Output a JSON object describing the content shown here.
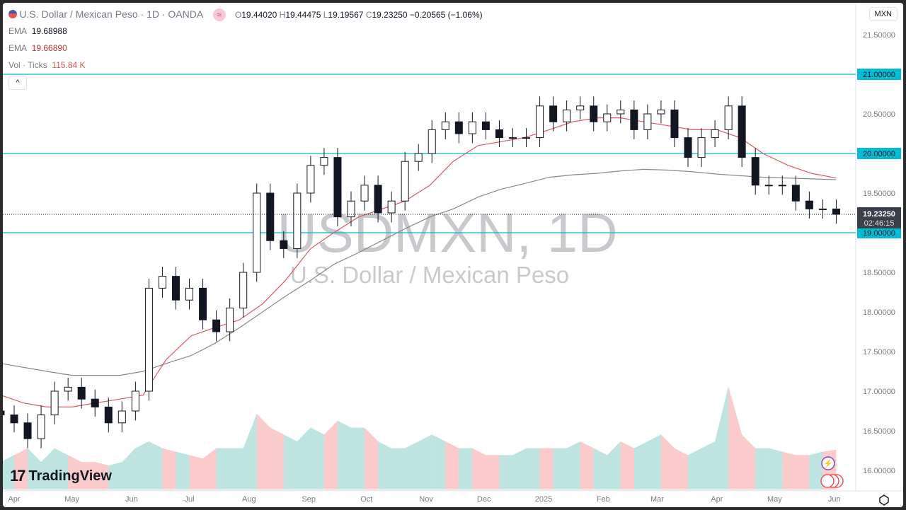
{
  "header": {
    "title": "U.S. Dollar / Mexican Peso · 1D · OANDA",
    "o_label": "O",
    "o": "19.44020",
    "h_label": "H",
    "h": "19.44475",
    "l_label": "L",
    "l": "19.19567",
    "c_label": "C",
    "c": "19.23250",
    "change": "−0.20565 (−1.06%)",
    "symbol_button": "MXN"
  },
  "indicators": [
    {
      "name": "EMA",
      "value": "19.68988",
      "color": "#131722"
    },
    {
      "name": "EMA",
      "value": "19.66890",
      "color": "#c0392b"
    },
    {
      "name": "Vol · Ticks",
      "value": "115.84 K",
      "color": "#e05555"
    }
  ],
  "watermark": {
    "line1": "USDMXN, 1D",
    "line2": "U.S. Dollar / Mexican Peso"
  },
  "logo": "TradingView",
  "price_badge": {
    "price": "19.23250",
    "countdown": "02:46:15"
  },
  "level_badges": [
    "21.00000",
    "20.00000",
    "19.00000"
  ],
  "colors": {
    "up": "#26a69a",
    "down": "#ef5350",
    "level": "#00bcd4",
    "ema_fast": "#e05560",
    "ema_slow": "#888888"
  },
  "chart_data": {
    "type": "candlestick",
    "interval": "weekly-sampled",
    "ylim": [
      15.8,
      21.6
    ],
    "y_ticks": [
      "21.50000",
      "21.00000",
      "20.50000",
      "20.00000",
      "19.50000",
      "19.00000",
      "18.50000",
      "18.00000",
      "17.50000",
      "17.00000",
      "16.50000",
      "16.00000"
    ],
    "y_tick_values": [
      21.5,
      21,
      20.5,
      20,
      19.5,
      19,
      18.5,
      18,
      17.5,
      17,
      16.5,
      16
    ],
    "x_ticks": [
      {
        "label": "Apr",
        "date": "2024-04-01"
      },
      {
        "label": "May",
        "date": "2024-05-01"
      },
      {
        "label": "Jun",
        "date": "2024-06-01"
      },
      {
        "label": "Jul",
        "date": "2024-07-01"
      },
      {
        "label": "Aug",
        "date": "2024-08-01"
      },
      {
        "label": "Sep",
        "date": "2024-09-01"
      },
      {
        "label": "Oct",
        "date": "2024-10-01"
      },
      {
        "label": "Nov",
        "date": "2024-11-01"
      },
      {
        "label": "Dec",
        "date": "2024-12-01"
      },
      {
        "label": "2025",
        "date": "2025-01-01"
      },
      {
        "label": "Feb",
        "date": "2025-02-01"
      },
      {
        "label": "Mar",
        "date": "2025-03-01"
      },
      {
        "label": "Apr",
        "date": "2025-04-01"
      },
      {
        "label": "May",
        "date": "2025-05-01"
      },
      {
        "label": "Jun",
        "date": "2025-06-01"
      }
    ],
    "horizontal_levels": [
      21.0,
      20.0,
      19.0
    ],
    "last_price": 19.2325,
    "dates": [
      "2024-03-25",
      "2024-04-01",
      "2024-04-08",
      "2024-04-15",
      "2024-04-22",
      "2024-04-29",
      "2024-05-06",
      "2024-05-13",
      "2024-05-20",
      "2024-05-27",
      "2024-06-03",
      "2024-06-10",
      "2024-06-17",
      "2024-06-24",
      "2024-07-01",
      "2024-07-08",
      "2024-07-15",
      "2024-07-22",
      "2024-07-29",
      "2024-08-05",
      "2024-08-12",
      "2024-08-19",
      "2024-08-26",
      "2024-09-02",
      "2024-09-09",
      "2024-09-16",
      "2024-09-23",
      "2024-09-30",
      "2024-10-07",
      "2024-10-14",
      "2024-10-21",
      "2024-10-28",
      "2024-11-04",
      "2024-11-11",
      "2024-11-18",
      "2024-11-25",
      "2024-12-02",
      "2024-12-09",
      "2024-12-16",
      "2024-12-23",
      "2024-12-30",
      "2025-01-06",
      "2025-01-13",
      "2025-01-20",
      "2025-01-27",
      "2025-02-03",
      "2025-02-10",
      "2025-02-17",
      "2025-02-24",
      "2025-03-03",
      "2025-03-10",
      "2025-03-17",
      "2025-03-24",
      "2025-03-31",
      "2025-04-07",
      "2025-04-14",
      "2025-04-21",
      "2025-04-28",
      "2025-05-05",
      "2025-05-12",
      "2025-05-19",
      "2025-05-26",
      "2025-06-02"
    ],
    "close": [
      16.7,
      16.6,
      16.4,
      16.7,
      17.0,
      17.05,
      16.9,
      16.8,
      16.6,
      16.75,
      17.0,
      18.3,
      18.45,
      18.15,
      18.3,
      17.9,
      17.75,
      18.05,
      18.5,
      19.5,
      18.9,
      18.8,
      19.5,
      19.85,
      19.95,
      19.2,
      19.4,
      19.6,
      19.25,
      19.4,
      19.9,
      20.0,
      20.3,
      20.4,
      20.25,
      20.4,
      20.3,
      20.2,
      20.2,
      20.2,
      20.6,
      20.4,
      20.55,
      20.6,
      20.4,
      20.5,
      20.55,
      20.3,
      20.5,
      20.55,
      20.2,
      19.95,
      20.2,
      20.3,
      20.6,
      19.95,
      19.6,
      19.6,
      19.6,
      19.4,
      19.3,
      19.3,
      19.2325
    ],
    "volume_k": [
      80,
      100,
      120,
      80,
      120,
      100,
      80,
      80,
      70,
      80,
      120,
      140,
      120,
      110,
      100,
      90,
      120,
      120,
      120,
      220,
      180,
      160,
      140,
      180,
      160,
      200,
      180,
      180,
      140,
      120,
      120,
      140,
      160,
      140,
      120,
      120,
      100,
      100,
      100,
      120,
      120,
      120,
      120,
      140,
      120,
      100,
      140,
      120,
      140,
      160,
      120,
      100,
      120,
      140,
      300,
      160,
      120,
      120,
      110,
      100,
      100,
      110,
      115.84
    ],
    "ema_fast": [
      16.95,
      16.85,
      16.8,
      16.8,
      16.85,
      16.9,
      16.95,
      17.4,
      17.7,
      17.8,
      17.9,
      18.1,
      18.4,
      18.8,
      19.0,
      19.2,
      19.3,
      19.4,
      19.6,
      19.9,
      20.1,
      20.15,
      20.2,
      20.3,
      20.4,
      20.45,
      20.45,
      20.4,
      20.35,
      20.3,
      20.3,
      20.2,
      20.0,
      19.85,
      19.75,
      19.69
    ],
    "ema_slow": [
      17.35,
      17.3,
      17.25,
      17.2,
      17.2,
      17.2,
      17.25,
      17.35,
      17.45,
      17.6,
      17.8,
      18.0,
      18.2,
      18.4,
      18.6,
      18.75,
      18.9,
      19.05,
      19.2,
      19.3,
      19.45,
      19.55,
      19.62,
      19.7,
      19.73,
      19.75,
      19.78,
      19.8,
      19.79,
      19.77,
      19.74,
      19.72,
      19.7,
      19.69,
      19.68,
      19.67
    ]
  }
}
